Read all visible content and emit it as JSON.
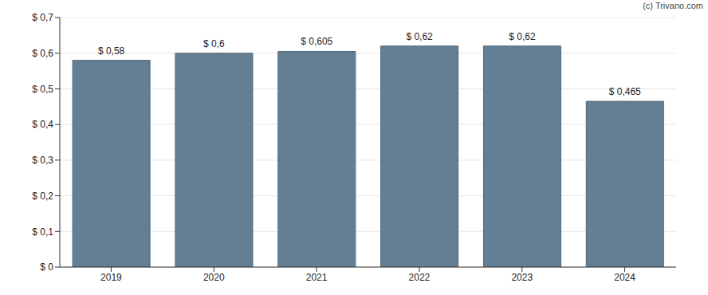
{
  "chart_data": {
    "type": "bar",
    "annotations": [
      "(c) Trivano.com"
    ],
    "categories": [
      "2019",
      "2020",
      "2021",
      "2022",
      "2023",
      "2024"
    ],
    "values": [
      0.58,
      0.6,
      0.605,
      0.62,
      0.62,
      0.465
    ],
    "value_labels": [
      "$ 0,58",
      "$ 0,6",
      "$ 0,605",
      "$ 0,62",
      "$ 0,62",
      "$ 0,465"
    ],
    "data_labels": true,
    "color": "#647f93",
    "ylim": [
      0,
      0.7
    ],
    "yticks": [
      {
        "value": 0,
        "label": "$ 0"
      },
      {
        "value": 0.1,
        "label": "$ 0,1"
      },
      {
        "value": 0.2,
        "label": "$ 0,2"
      },
      {
        "value": 0.3,
        "label": "$ 0,3"
      },
      {
        "value": 0.4,
        "label": "$ 0,4"
      },
      {
        "value": 0.5,
        "label": "$ 0,5"
      },
      {
        "value": 0.6,
        "label": "$ 0,6"
      },
      {
        "value": 0.7,
        "label": "$ 0,7"
      }
    ],
    "grid": true
  }
}
